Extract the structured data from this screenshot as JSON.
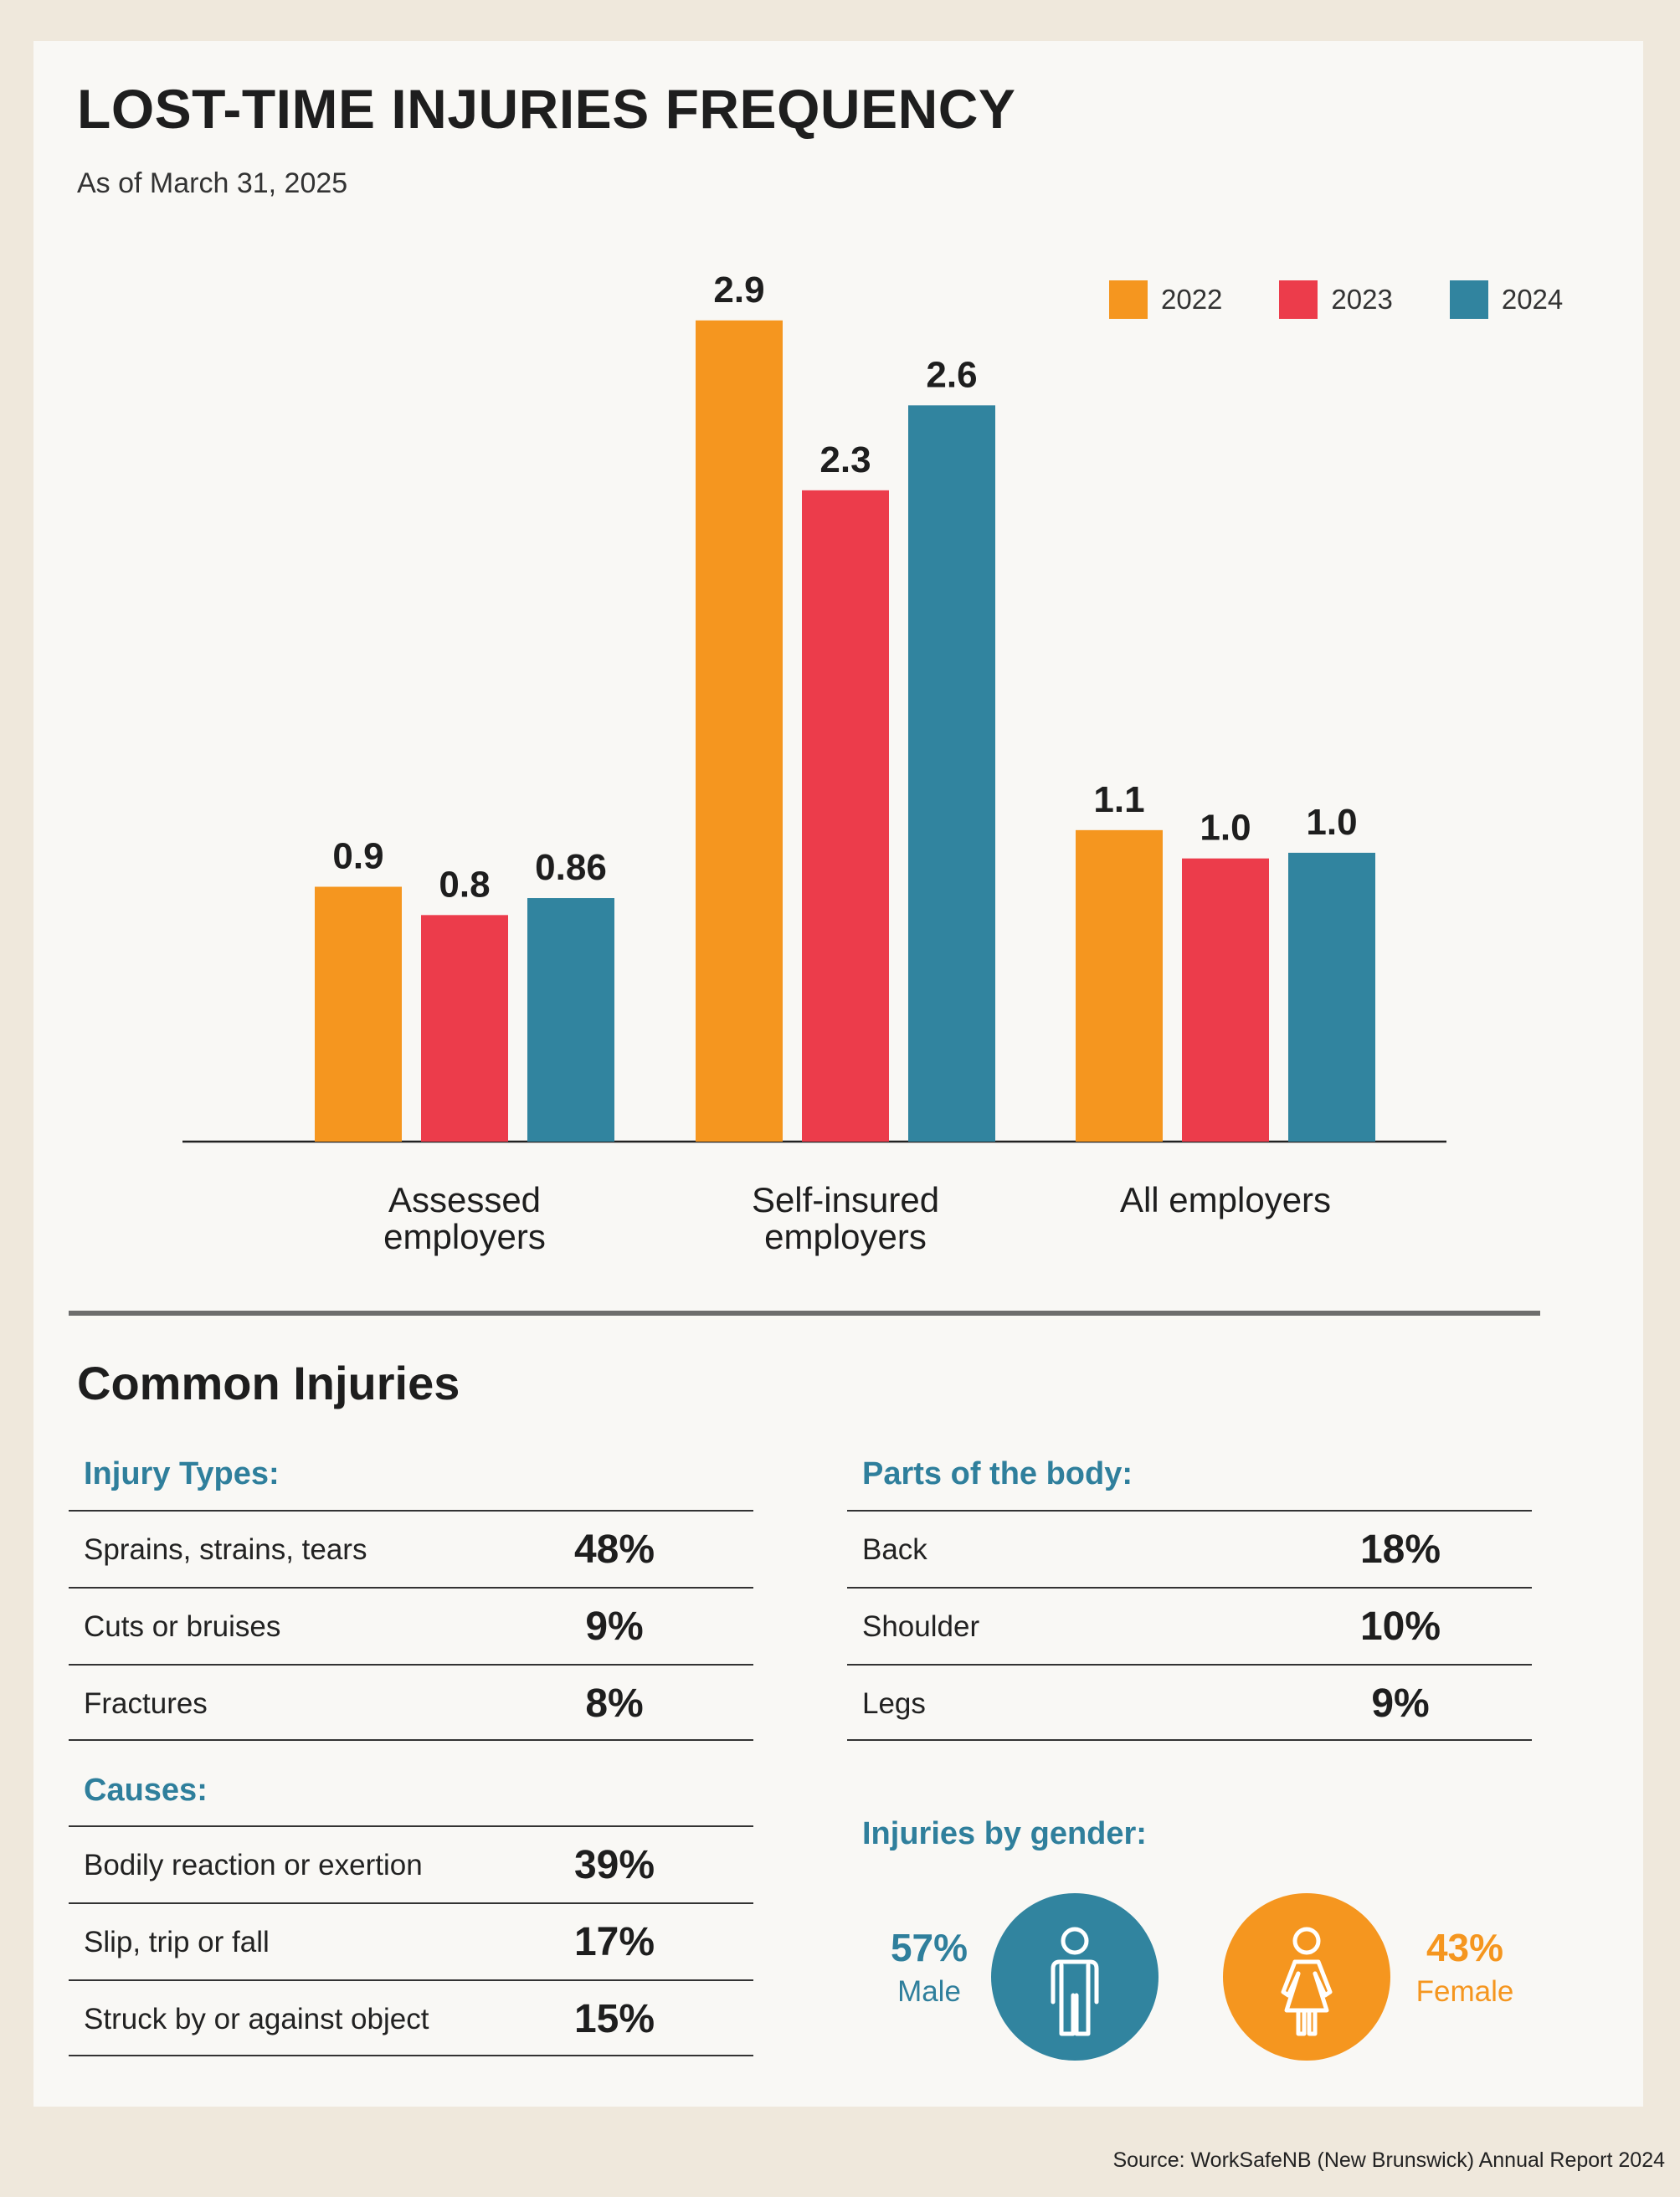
{
  "header": {
    "title": "LOST-TIME INJURIES FREQUENCY",
    "subtitle": "As of March 31, 2025"
  },
  "colors": {
    "2022": "#f5961f",
    "2023": "#ec3c4b",
    "2024": "#31849f",
    "heading_teal": "#2f7f9c",
    "orange": "#f5961f"
  },
  "chart_data": {
    "type": "bar",
    "title": "LOST-TIME INJURIES FREQUENCY",
    "categories": [
      "Assessed employers",
      "Self-insured employers",
      "All employers"
    ],
    "category_lines": [
      [
        "Assessed",
        "employers"
      ],
      [
        "Self-insured",
        "employers"
      ],
      [
        "All employers"
      ]
    ],
    "series": [
      {
        "name": "2022",
        "values": [
          0.9,
          2.9,
          1.1
        ],
        "labels": [
          "0.9",
          "2.9",
          "1.1"
        ],
        "color": "#f5961f"
      },
      {
        "name": "2023",
        "values": [
          0.8,
          2.3,
          1.0
        ],
        "labels": [
          "0.8",
          "2.3",
          "1.0"
        ],
        "color": "#ec3c4b"
      },
      {
        "name": "2024",
        "values": [
          0.86,
          2.6,
          1.02
        ],
        "labels": [
          "0.86",
          "2.6",
          "1.0"
        ],
        "color": "#31849f"
      }
    ],
    "ylim": [
      0,
      3.0
    ],
    "grid": false,
    "legend_position": "top-right"
  },
  "injuries": {
    "section_title": "Common Injuries",
    "types": {
      "heading": "Injury Types:",
      "rows": [
        {
          "label": "Sprains, strains, tears",
          "value": "48%"
        },
        {
          "label": "Cuts or bruises",
          "value": "9%"
        },
        {
          "label": "Fractures",
          "value": "8%"
        }
      ]
    },
    "causes": {
      "heading": "Causes:",
      "rows": [
        {
          "label": "Bodily reaction or exertion",
          "value": "39%"
        },
        {
          "label": "Slip, trip or fall",
          "value": "17%"
        },
        {
          "label": "Struck by or against object",
          "value": "15%"
        }
      ]
    },
    "body_parts": {
      "heading": "Parts of the body:",
      "rows": [
        {
          "label": "Back",
          "value": "18%"
        },
        {
          "label": "Shoulder",
          "value": "10%"
        },
        {
          "label": "Legs",
          "value": "9%"
        }
      ]
    },
    "gender": {
      "heading": "Injuries by gender:",
      "male": {
        "pct": "57%",
        "label": "Male",
        "icon": "male-person-icon"
      },
      "female": {
        "pct": "43%",
        "label": "Female",
        "icon": "female-person-icon"
      }
    }
  },
  "footer": {
    "source": "Source: WorkSafeNB (New Brunswick) Annual Report 2024"
  }
}
